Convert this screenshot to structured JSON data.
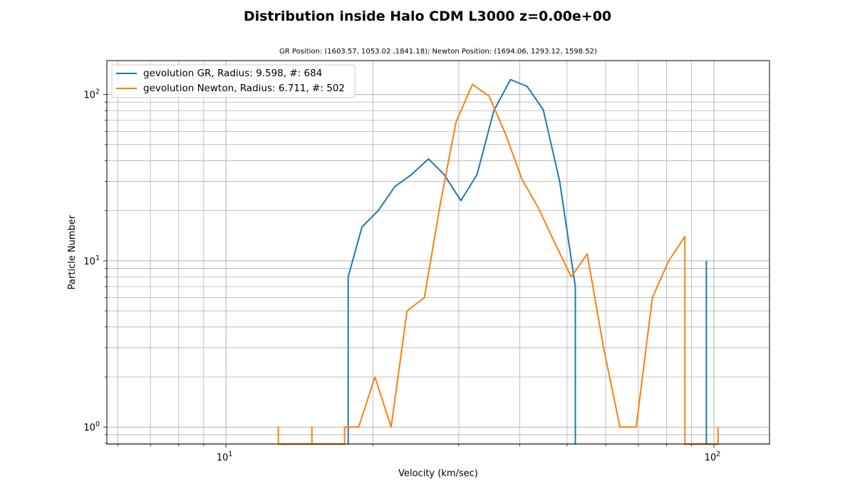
{
  "chart_data": {
    "type": "line",
    "title": "Distribution inside Halo CDM L3000 z=0.00e+00",
    "subtitle": "GR Position: (1603.57, 1053.02 ,1841.18); Newton Position: (1694.06, 1293.12, 1598.52)",
    "xlabel": "Velocity (km/sec)",
    "ylabel": "Particle Number",
    "xscale": "log",
    "yscale": "log",
    "xlim": [
      5.7,
      130
    ],
    "ylim": [
      0.79,
      160
    ],
    "grid": "major and minor",
    "legend_position": "top-left",
    "x_tick_labels": [
      {
        "value": 10,
        "base": "10",
        "exp": "1"
      },
      {
        "value": 100,
        "base": "10",
        "exp": "2"
      }
    ],
    "y_tick_labels": [
      {
        "value": 1,
        "base": "10",
        "exp": "0"
      },
      {
        "value": 10,
        "base": "10",
        "exp": "1"
      },
      {
        "value": 100,
        "base": "10",
        "exp": "2"
      }
    ],
    "series": [
      {
        "name": "gevolution GR, Radius: 9.598, #: 684",
        "color": "#1f77b4",
        "x": [
          17.8,
          17.8,
          19.0,
          20.5,
          22.2,
          24.0,
          26.0,
          28.0,
          30.3,
          32.7,
          35.4,
          38.3,
          41.4,
          44.7,
          48.3,
          52.0,
          52.0
        ],
        "y": [
          0.78,
          8,
          16,
          20,
          28,
          33,
          41,
          33,
          23,
          33,
          80,
          123,
          112,
          81,
          30,
          7,
          0.78
        ]
      },
      {
        "name": "gevolution Newton, Radius: 6.711, #: 502",
        "color": "#ff7f0e",
        "x": [
          12.8,
          12.8,
          12.8,
          15.0,
          15.0,
          15.0,
          17.5,
          17.5,
          18.7,
          20.2,
          21.8,
          23.5,
          25.5,
          27.5,
          29.6,
          32.0,
          34.6,
          37.4,
          40.4,
          43.6,
          47.1,
          51.0,
          55.0,
          59.4,
          64.2,
          69.3,
          74.8,
          80.8,
          87.2,
          87.2,
          102.0,
          102.0
        ],
        "y": [
          0.78,
          1,
          0.78,
          0.78,
          1,
          0.78,
          0.78,
          1,
          1,
          2,
          1,
          5,
          6,
          22,
          68,
          115,
          98,
          58,
          31,
          21,
          13,
          8,
          11,
          3,
          1,
          1,
          6,
          10,
          14,
          0.78,
          0.78,
          1
        ]
      },
      {
        "name": "",
        "color": "#1f77b4",
        "x": [
          96.5,
          96.5
        ],
        "y": [
          0.78,
          10
        ]
      }
    ]
  }
}
